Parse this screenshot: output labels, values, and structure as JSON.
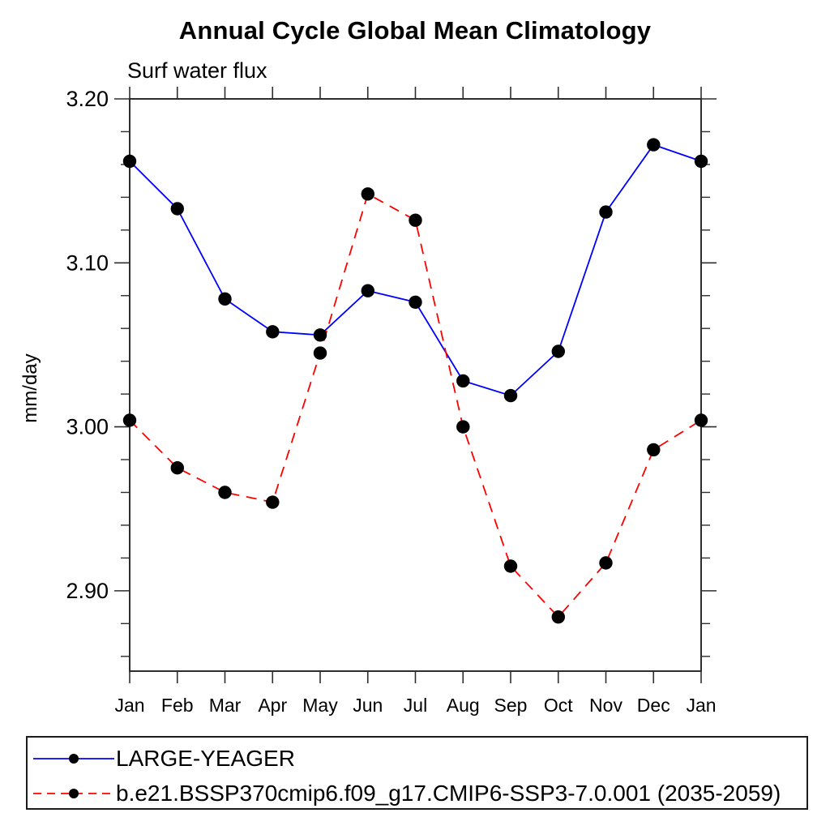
{
  "page": {
    "background": "#ffffff"
  },
  "chart": {
    "title": "Annual Cycle Global Mean Climatology",
    "subtitle": "Surf water flux",
    "ylabel": "mm/day"
  },
  "chart_data": {
    "type": "line",
    "title": "Annual Cycle Global Mean Climatology",
    "subtitle": "Surf water flux",
    "xlabel": "",
    "ylabel": "mm/day",
    "categories": [
      "Jan",
      "Feb",
      "Mar",
      "Apr",
      "May",
      "Jun",
      "Jul",
      "Aug",
      "Sep",
      "Oct",
      "Nov",
      "Dec",
      "Jan"
    ],
    "series": [
      {
        "name": "LARGE-YEAGER",
        "color": "#0000ff",
        "line_style": "solid",
        "marker": "filled-circle",
        "marker_color": "#000000",
        "values": [
          3.162,
          3.133,
          3.078,
          3.058,
          3.056,
          3.083,
          3.076,
          3.028,
          3.019,
          3.046,
          3.131,
          3.172,
          3.162
        ]
      },
      {
        "name": "b.e21.BSSP370cmip6.f09_g17.CMIP6-SSP3-7.0.001 (2035-2059)",
        "color": "#ff0000",
        "line_style": "dashed",
        "marker": "filled-circle",
        "marker_color": "#000000",
        "values": [
          3.004,
          2.975,
          2.96,
          2.954,
          3.045,
          3.142,
          3.126,
          3.0,
          2.915,
          2.884,
          2.917,
          2.986,
          3.004
        ]
      }
    ],
    "ylim": [
      2.851,
      3.2
    ],
    "yticks_major": [
      2.9,
      3.0,
      3.1,
      3.2
    ],
    "ytick_labels": [
      "2.90",
      "3.00",
      "3.10",
      "3.20"
    ],
    "ytick_minor_step": 0.02,
    "grid": false,
    "legend_position": "bottom-left-box",
    "axis_color": "#2e2e2e"
  },
  "legend": {
    "entries": [
      {
        "label": "LARGE-YEAGER",
        "color": "#0000ff",
        "style": "solid"
      },
      {
        "label": "b.e21.BSSP370cmip6.f09_g17.CMIP6-SSP3-7.0.001 (2035-2059)",
        "color": "#ff0000",
        "style": "dashed"
      }
    ]
  },
  "colors": {
    "marker": "#000000",
    "axis": "#2e2e2e",
    "text": "#000000"
  }
}
